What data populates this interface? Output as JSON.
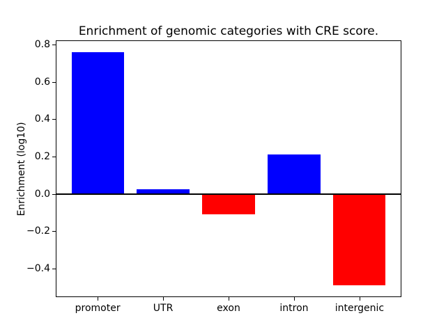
{
  "figure": {
    "background": "#ffffff"
  },
  "chart_data": {
    "type": "bar",
    "title": "Enrichment of genomic categories with CRE score.",
    "xlabel": "",
    "ylabel": "Enrichment (log10)",
    "categories": [
      "promoter",
      "UTR",
      "exon",
      "intron",
      "intergenic"
    ],
    "values": [
      0.76,
      0.025,
      -0.11,
      0.21,
      -0.49
    ],
    "bar_colors": [
      "#0000ff",
      "#0000ff",
      "#ff0000",
      "#0000ff",
      "#ff0000"
    ],
    "positive_color": "#0000ff",
    "negative_color": "#ff0000",
    "ylim": [
      -0.5525,
      0.8225
    ],
    "yticks": [
      -0.4,
      -0.2,
      0.0,
      0.2,
      0.4,
      0.6,
      0.8
    ],
    "ytick_labels": [
      "−0.4",
      "−0.2",
      "0.0",
      "0.2",
      "0.4",
      "0.6",
      "0.8"
    ],
    "zero_line": true,
    "grid": false,
    "legend": null
  }
}
